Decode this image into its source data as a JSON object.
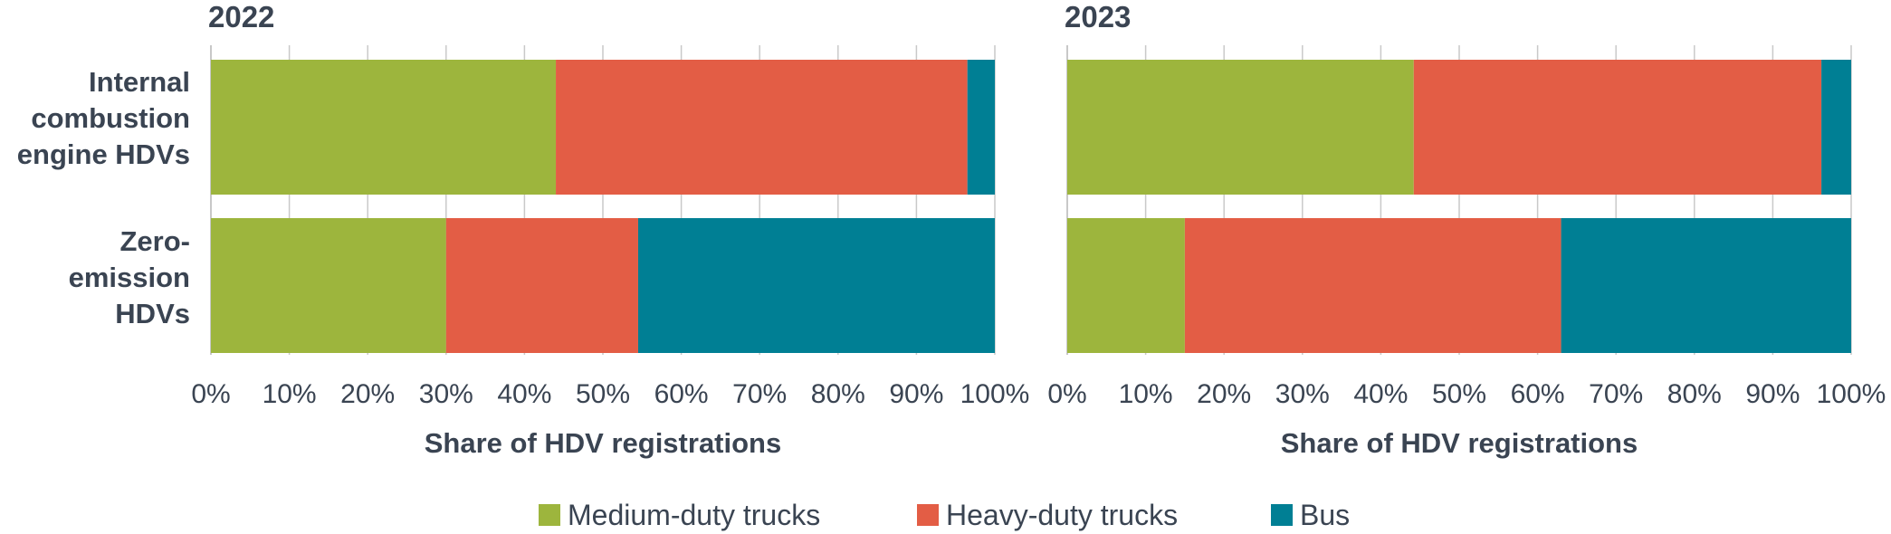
{
  "chart_data": [
    {
      "type": "bar",
      "orientation": "horizontal",
      "stacked": true,
      "title": "2022",
      "xlabel": "Share of HDV registrations",
      "ylabel": "",
      "xlim": [
        0,
        100
      ],
      "x_ticks": [
        "0%",
        "10%",
        "20%",
        "30%",
        "40%",
        "50%",
        "60%",
        "70%",
        "80%",
        "90%",
        "100%"
      ],
      "categories": [
        [
          "Internal",
          "combustion",
          "engine HDVs"
        ],
        [
          "Zero-",
          "emission",
          "HDVs"
        ]
      ],
      "series": [
        {
          "name": "Medium-duty trucks",
          "values": [
            44,
            30
          ]
        },
        {
          "name": "Heavy-duty trucks",
          "values": [
            52.5,
            24.5
          ]
        },
        {
          "name": "Bus",
          "values": [
            3.5,
            45.5
          ]
        }
      ],
      "grid": true,
      "legend_position": "bottom"
    },
    {
      "type": "bar",
      "orientation": "horizontal",
      "stacked": true,
      "title": "2023",
      "xlabel": "Share of HDV registrations",
      "ylabel": "",
      "xlim": [
        0,
        100
      ],
      "x_ticks": [
        "0%",
        "10%",
        "20%",
        "30%",
        "40%",
        "50%",
        "60%",
        "70%",
        "80%",
        "90%",
        "100%"
      ],
      "categories": [
        [
          "Internal",
          "combustion",
          "engine HDVs"
        ],
        [
          "Zero-",
          "emission",
          "HDVs"
        ]
      ],
      "series": [
        {
          "name": "Medium-duty trucks",
          "values": [
            44.2,
            15
          ]
        },
        {
          "name": "Heavy-duty trucks",
          "values": [
            52,
            48
          ]
        },
        {
          "name": "Bus",
          "values": [
            3.8,
            37
          ]
        }
      ],
      "grid": true,
      "legend_position": "bottom"
    }
  ],
  "legend": [
    {
      "label": "Medium-duty trucks",
      "color": "#9db53d"
    },
    {
      "label": "Heavy-duty trucks",
      "color": "#e35d45"
    },
    {
      "label": "Bus",
      "color": "#007f94"
    }
  ],
  "colors": {
    "Medium-duty trucks": "#9db53d",
    "Heavy-duty trucks": "#e35d45",
    "Bus": "#007f94",
    "text": "#3a4452"
  }
}
